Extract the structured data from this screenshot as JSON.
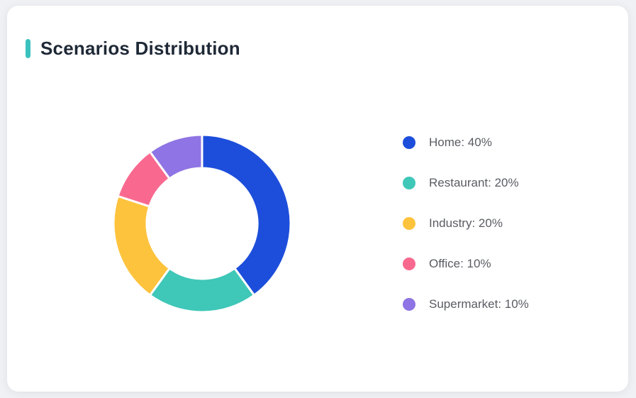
{
  "card": {
    "title": "Scenarios Distribution",
    "accent_color": "#3BC2BE",
    "background": "#FFFFFF"
  },
  "page": {
    "background": "#F0F1F4"
  },
  "chart_data": {
    "type": "pie",
    "title": "Scenarios Distribution",
    "donut": true,
    "start_angle_deg": 0,
    "direction": "clockwise",
    "inner_radius_ratio": 0.62,
    "legend_position": "right",
    "segments": [
      {
        "label": "Home",
        "value": 40,
        "unit": "%",
        "color": "#1D4EDB",
        "legend": "Home: 40%"
      },
      {
        "label": "Restaurant",
        "value": 20,
        "unit": "%",
        "color": "#3FC7B8",
        "legend": "Restaurant: 20%"
      },
      {
        "label": "Industry",
        "value": 20,
        "unit": "%",
        "color": "#FDC33D",
        "legend": "Industry: 20%"
      },
      {
        "label": "Office",
        "value": 10,
        "unit": "%",
        "color": "#F9698F",
        "legend": "Office: 10%"
      },
      {
        "label": "Supermarket",
        "value": 10,
        "unit": "%",
        "color": "#8E74E4",
        "legend": "Supermarket: 10%"
      }
    ]
  }
}
